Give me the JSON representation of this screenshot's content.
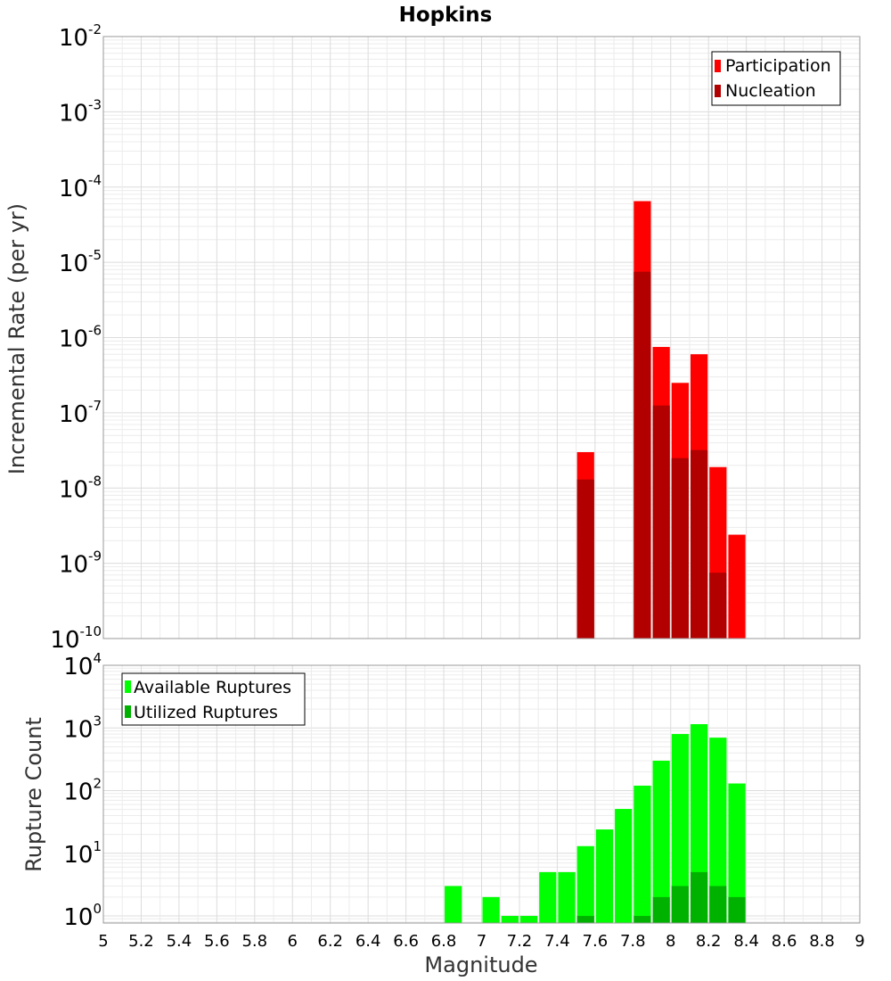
{
  "chart_data": [
    {
      "type": "bar",
      "title": "Hopkins",
      "xlabel": "",
      "ylabel": "Incremental Rate (per yr)",
      "y_scale": "log",
      "ylim": [
        1e-10,
        0.01
      ],
      "xlim": [
        5,
        9
      ],
      "y_ticks": [
        {
          "mant": "10",
          "exp": "-10"
        },
        {
          "mant": "10",
          "exp": "-9"
        },
        {
          "mant": "10",
          "exp": "-8"
        },
        {
          "mant": "10",
          "exp": "-7"
        },
        {
          "mant": "10",
          "exp": "-6"
        },
        {
          "mant": "10",
          "exp": "-5"
        },
        {
          "mant": "10",
          "exp": "-4"
        },
        {
          "mant": "10",
          "exp": "-3"
        },
        {
          "mant": "10",
          "exp": "-2"
        }
      ],
      "legend_position": "top-right",
      "grid": true,
      "series": [
        {
          "name": "Participation",
          "color": "#ff0000",
          "points": [
            {
              "x": 7.55,
              "y": 3e-08
            },
            {
              "x": 7.85,
              "y": 6.5e-05
            },
            {
              "x": 7.95,
              "y": 7.5e-07
            },
            {
              "x": 8.05,
              "y": 2.5e-07
            },
            {
              "x": 8.15,
              "y": 6e-07
            },
            {
              "x": 8.25,
              "y": 1.9e-08
            },
            {
              "x": 8.35,
              "y": 2.4e-09
            }
          ]
        },
        {
          "name": "Nucleation",
          "color": "#b20000",
          "points": [
            {
              "x": 7.55,
              "y": 1.3e-08
            },
            {
              "x": 7.85,
              "y": 7.5e-06
            },
            {
              "x": 7.95,
              "y": 1.25e-07
            },
            {
              "x": 8.05,
              "y": 2.5e-08
            },
            {
              "x": 8.15,
              "y": 3.2e-08
            },
            {
              "x": 8.25,
              "y": 7.5e-10
            }
          ]
        }
      ]
    },
    {
      "type": "bar",
      "title": "",
      "xlabel": "Magnitude",
      "ylabel": "Rupture Count",
      "y_scale": "log",
      "ylim": [
        0.77,
        10000
      ],
      "xlim": [
        5,
        9
      ],
      "x_tick_labels": [
        "5",
        "5.2",
        "5.4",
        "5.6",
        "5.8",
        "6",
        "6.2",
        "6.4",
        "6.6",
        "6.8",
        "7",
        "7.2",
        "7.4",
        "7.6",
        "7.8",
        "8",
        "8.2",
        "8.4",
        "8.6",
        "8.8",
        "9"
      ],
      "y_ticks": [
        {
          "value": 1,
          "mant": "10",
          "exp": "0"
        },
        {
          "value": 10,
          "mant": "10",
          "exp": "1"
        },
        {
          "value": 100,
          "mant": "10",
          "exp": "2"
        },
        {
          "value": 1000,
          "mant": "10",
          "exp": "3"
        },
        {
          "value": 10000,
          "mant": "10",
          "exp": "4"
        }
      ],
      "legend_position": "top-left",
      "grid": true,
      "series": [
        {
          "name": "Available Ruptures",
          "color": "#00ff00",
          "points": [
            {
              "x": 6.85,
              "y": 3
            },
            {
              "x": 7.05,
              "y": 2
            },
            {
              "x": 7.15,
              "y": 1
            },
            {
              "x": 7.25,
              "y": 1
            },
            {
              "x": 7.35,
              "y": 5
            },
            {
              "x": 7.45,
              "y": 5
            },
            {
              "x": 7.55,
              "y": 13
            },
            {
              "x": 7.65,
              "y": 24
            },
            {
              "x": 7.75,
              "y": 51
            },
            {
              "x": 7.85,
              "y": 120
            },
            {
              "x": 7.95,
              "y": 300
            },
            {
              "x": 8.05,
              "y": 800
            },
            {
              "x": 8.15,
              "y": 1150
            },
            {
              "x": 8.25,
              "y": 700
            },
            {
              "x": 8.35,
              "y": 130
            }
          ]
        },
        {
          "name": "Utilized Ruptures",
          "color": "#00b200",
          "points": [
            {
              "x": 7.55,
              "y": 1
            },
            {
              "x": 7.85,
              "y": 1
            },
            {
              "x": 7.95,
              "y": 2
            },
            {
              "x": 8.05,
              "y": 3
            },
            {
              "x": 8.15,
              "y": 5
            },
            {
              "x": 8.25,
              "y": 3
            },
            {
              "x": 8.35,
              "y": 2
            }
          ]
        }
      ]
    }
  ]
}
